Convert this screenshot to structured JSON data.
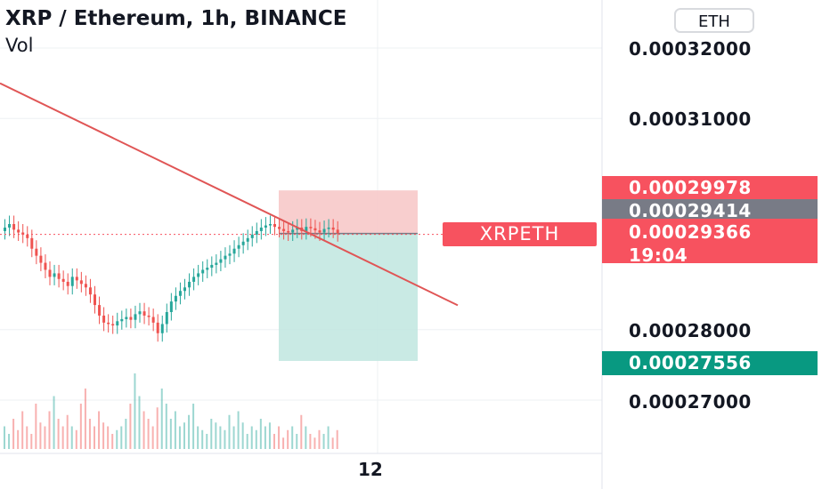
{
  "header": {
    "title": "XRP / Ethereum, 1h, BINANCE",
    "volume_label": "Vol",
    "currency": "ETH"
  },
  "price_axis": {
    "ticks": [
      "0.00032000",
      "0.00031000",
      "0.00028000",
      "0.00027000"
    ]
  },
  "price_badges": {
    "stop_loss": "0.00029978",
    "gray_line": "0.00029414",
    "last_price": "0.00029366",
    "countdown": "19:04",
    "take_profit": "0.00027556"
  },
  "symbol_label": "XRPETH",
  "time_axis": {
    "label": "12"
  },
  "colors": {
    "up": "#26a69a",
    "down": "#ef5350",
    "trendline": "#e05555",
    "stop_zone": "#f7c6c6",
    "target_zone": "#bfe6df",
    "badge_red": "#f7525f",
    "badge_gray": "#787b86",
    "badge_green": "#089981"
  },
  "chart_data": {
    "type": "candlestick",
    "title": "XRP / Ethereum, 1h, BINANCE",
    "y_axis": {
      "range": [
        0.000265,
        0.00033
      ],
      "ticks": [
        0.00032,
        0.00031,
        0.00028,
        0.00027
      ]
    },
    "x_axis": {
      "tick_labels": [
        "12"
      ]
    },
    "trendline": {
      "from_price": 0.000315,
      "to_price": 0.000287
    },
    "short_position": {
      "entry": 0.00029366,
      "stop": 0.00029978,
      "target": 0.00027556
    },
    "close_prices": [
      0.0002945,
      0.000295,
      0.0002942,
      0.0002938,
      0.0002935,
      0.000293,
      0.0002915,
      0.0002905,
      0.0002895,
      0.0002885,
      0.0002875,
      0.000288,
      0.0002872,
      0.0002868,
      0.0002862,
      0.0002875,
      0.000287,
      0.0002865,
      0.000286,
      0.000285,
      0.0002835,
      0.000282,
      0.000281,
      0.0002808,
      0.0002806,
      0.0002812,
      0.0002815,
      0.0002818,
      0.0002814,
      0.0002822,
      0.0002826,
      0.000282,
      0.0002818,
      0.000281,
      0.0002795,
      0.0002808,
      0.0002825,
      0.000284,
      0.0002848,
      0.0002855,
      0.000286,
      0.0002868,
      0.0002875,
      0.000288,
      0.0002885,
      0.0002888,
      0.0002892,
      0.0002895,
      0.00029,
      0.0002905,
      0.0002908,
      0.0002915,
      0.000292,
      0.0002925,
      0.000293,
      0.0002935,
      0.000294,
      0.0002945,
      0.0002948,
      0.000295,
      0.0002946,
      0.0002943,
      0.000294,
      0.0002938,
      0.0002942,
      0.0002945,
      0.000294,
      0.0002946,
      0.0002944,
      0.0002941,
      0.0002938,
      0.0002943,
      0.0002945,
      0.0002942,
      0.0002937
    ],
    "volume_relative": [
      0.3,
      0.2,
      0.4,
      0.25,
      0.5,
      0.3,
      0.2,
      0.6,
      0.35,
      0.3,
      0.5,
      0.7,
      0.4,
      0.3,
      0.45,
      0.3,
      0.25,
      0.6,
      0.8,
      0.4,
      0.3,
      0.5,
      0.35,
      0.3,
      0.2,
      0.25,
      0.3,
      0.4,
      0.6,
      1.0,
      0.7,
      0.5,
      0.4,
      0.3,
      0.55,
      0.8,
      0.6,
      0.4,
      0.5,
      0.3,
      0.35,
      0.45,
      0.6,
      0.3,
      0.25,
      0.2,
      0.4,
      0.35,
      0.3,
      0.25,
      0.45,
      0.3,
      0.5,
      0.35,
      0.2,
      0.3,
      0.25,
      0.4,
      0.3,
      0.35,
      0.2,
      0.3,
      0.15,
      0.25,
      0.3,
      0.2,
      0.45,
      0.3,
      0.2,
      0.15,
      0.25,
      0.2,
      0.3,
      0.15,
      0.25
    ]
  }
}
